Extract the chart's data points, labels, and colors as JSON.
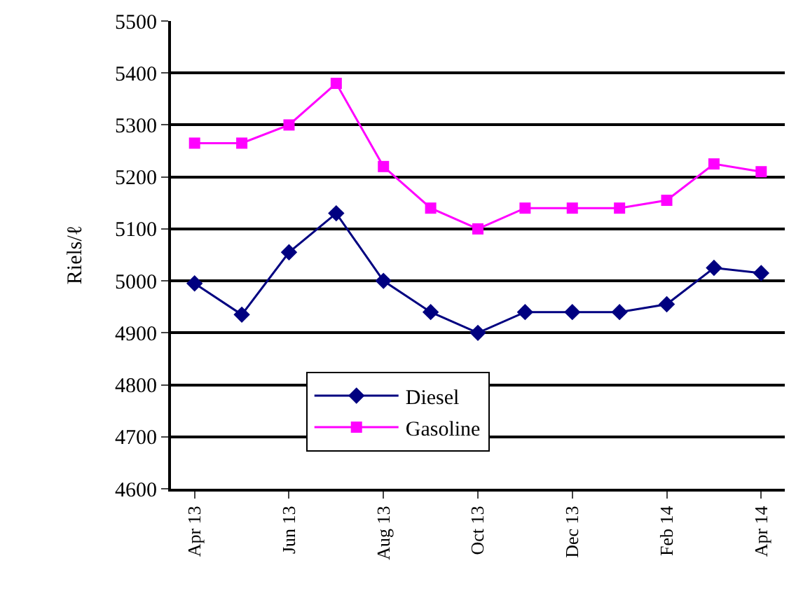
{
  "chart_data": {
    "type": "line",
    "ylabel": "Riels/ℓ",
    "categories": [
      "Apr 13",
      null,
      "Jun 13",
      null,
      "Aug 13",
      null,
      "Oct 13",
      null,
      "Dec 13",
      null,
      "Feb 14",
      null,
      "Apr 14"
    ],
    "series": [
      {
        "name": "Diesel",
        "color": "#000080",
        "marker": "diamond",
        "values": [
          4995,
          4935,
          5055,
          5130,
          5000,
          4940,
          4900,
          4940,
          4940,
          4940,
          4955,
          5025,
          5015
        ]
      },
      {
        "name": "Gasoline",
        "color": "#ff00ff",
        "marker": "square",
        "values": [
          5265,
          5265,
          5300,
          5380,
          5220,
          5140,
          5100,
          5140,
          5140,
          5140,
          5155,
          5225,
          5210
        ]
      }
    ],
    "ylim": [
      4600,
      5500
    ],
    "yticks": [
      4600,
      4700,
      4800,
      4900,
      5000,
      5100,
      5200,
      5300,
      5400,
      5500
    ],
    "grid": "y",
    "legend": "bottom left",
    "line_style": "solid"
  }
}
